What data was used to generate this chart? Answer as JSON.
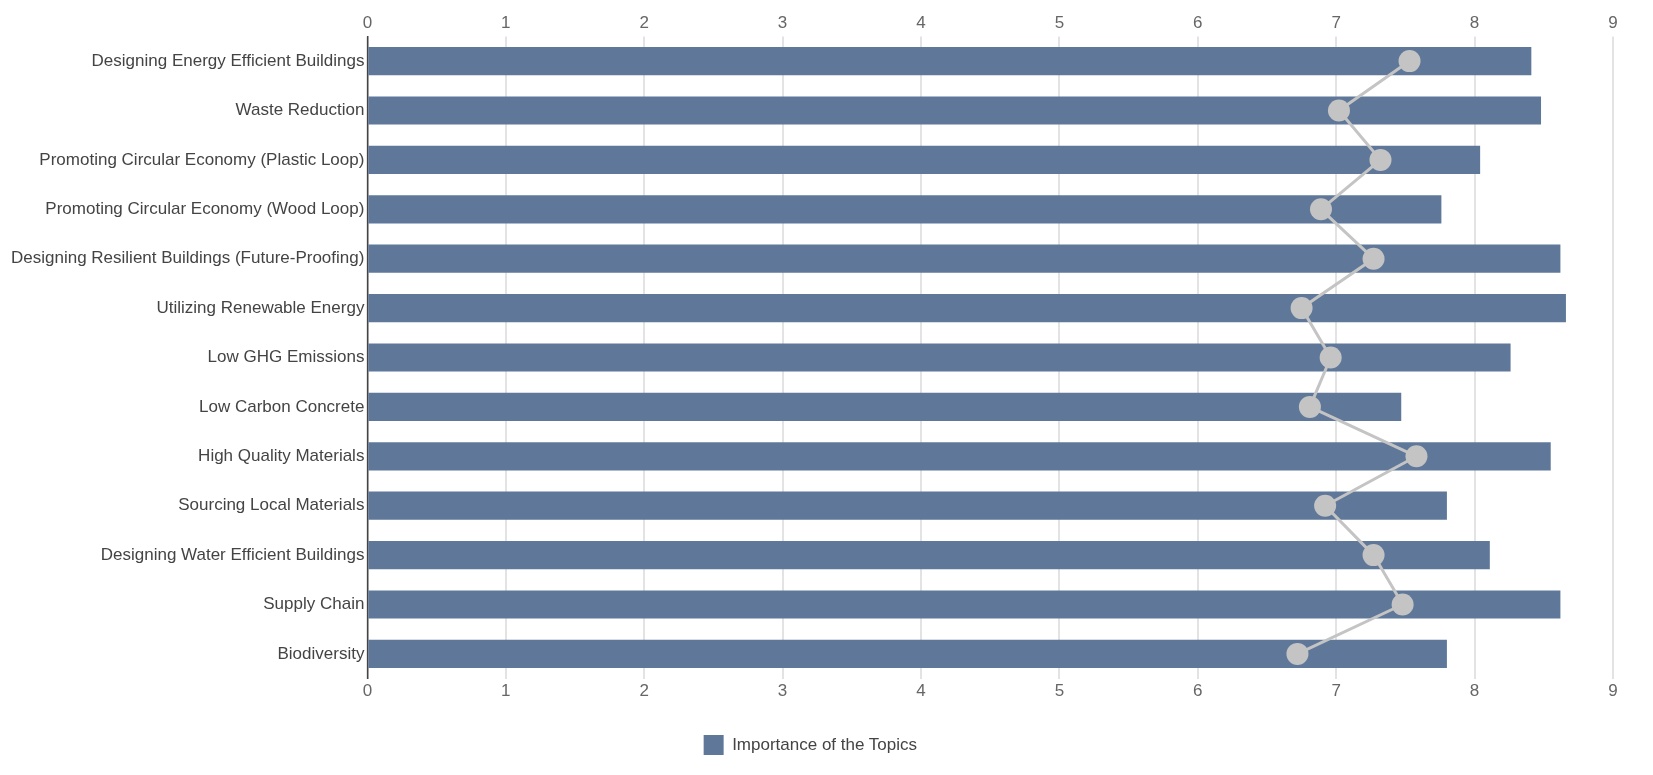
{
  "chart_data": {
    "type": "bar",
    "orientation": "horizontal",
    "categories": [
      "Designing Energy Efficient Buildings",
      "Waste Reduction",
      "Promoting Circular Economy (Plastic Loop)",
      "Promoting Circular Economy (Wood Loop)",
      "Designing Resilient Buildings (Future-Proofing)",
      "Utilizing Renewable Energy",
      "Low GHG Emissions",
      "Low Carbon Concrete",
      "High Quality Materials",
      "Sourcing Local Materials",
      "Designing Water Efficient Buildings",
      "Supply Chain",
      "Biodiversity"
    ],
    "series": [
      {
        "name": "Importance of the Topics",
        "color": "#5f7899",
        "values": [
          8.41,
          8.48,
          8.04,
          7.76,
          8.62,
          8.66,
          8.26,
          7.47,
          8.55,
          7.8,
          8.11,
          8.62,
          7.8
        ]
      },
      {
        "type": "line",
        "color": "#c4c4c4",
        "marker": "circle",
        "values": [
          7.53,
          7.02,
          7.32,
          6.89,
          7.27,
          6.75,
          6.96,
          6.81,
          7.58,
          6.92,
          7.27,
          7.48,
          6.72
        ]
      }
    ],
    "xlim": [
      0,
      9
    ],
    "xticks": [
      0,
      1,
      2,
      3,
      4,
      5,
      6,
      7,
      8,
      9
    ],
    "x2lim": [
      0,
      9
    ],
    "x2ticks": [
      0,
      1,
      2,
      3,
      4,
      5,
      6,
      7,
      8,
      9
    ],
    "grid": "x",
    "legend": "bottom"
  }
}
